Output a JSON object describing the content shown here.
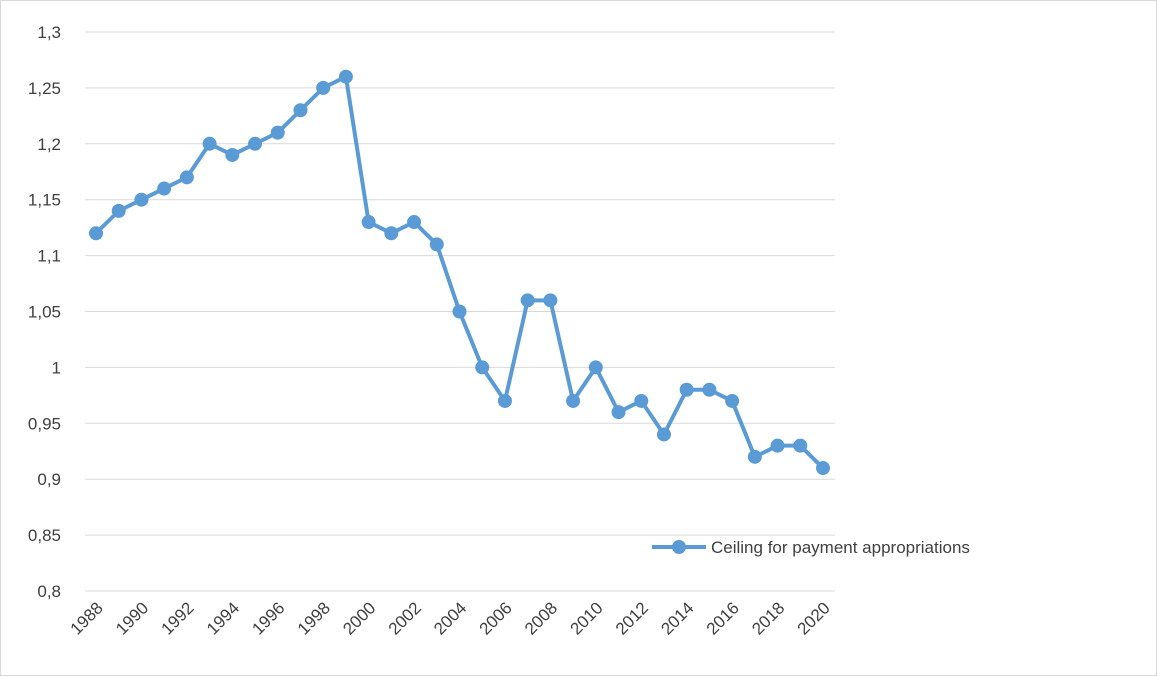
{
  "chart_data": {
    "type": "line",
    "x": [
      1988,
      1989,
      1990,
      1991,
      1992,
      1993,
      1994,
      1995,
      1996,
      1997,
      1998,
      1999,
      2000,
      2001,
      2002,
      2003,
      2004,
      2005,
      2006,
      2007,
      2008,
      2009,
      2010,
      2011,
      2012,
      2013,
      2014,
      2015,
      2016,
      2017,
      2018,
      2019,
      2020
    ],
    "x_tick_labels": [
      "1988",
      "1990",
      "1992",
      "1994",
      "1996",
      "1998",
      "2000",
      "2002",
      "2004",
      "2006",
      "2008",
      "2010",
      "2012",
      "2014",
      "2016",
      "2018",
      "2020"
    ],
    "y_tick_labels": [
      "1,3",
      "1,25",
      "1,2",
      "1,15",
      "1,1",
      "1,05",
      "1",
      "0,95",
      "0,9",
      "0,85",
      "0,8"
    ],
    "ylim": [
      0.8,
      1.3
    ],
    "grid": "horizontal",
    "legend_position": "right",
    "series": [
      {
        "name": "Ceiling for payment appropriations",
        "color": "#5b9bd5",
        "values": [
          1.12,
          1.14,
          1.15,
          1.16,
          1.17,
          1.2,
          1.19,
          1.2,
          1.21,
          1.23,
          1.25,
          1.26,
          1.13,
          1.12,
          1.13,
          1.11,
          1.05,
          1.0,
          0.97,
          1.06,
          1.06,
          0.97,
          1.0,
          0.96,
          0.97,
          0.94,
          0.98,
          0.98,
          0.97,
          0.92,
          0.93,
          0.93,
          0.91
        ]
      }
    ],
    "title": "",
    "xlabel": "",
    "ylabel": ""
  }
}
